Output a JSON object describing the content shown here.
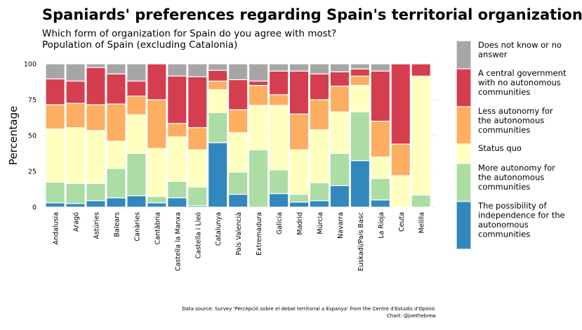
{
  "chart_data": {
    "type": "bar",
    "stacked": true,
    "title": "Spaniards' preferences regarding Spain's territorial organization",
    "subtitle_lines": [
      "Which form of organization for Spain do you agree with most?",
      "Population of Spain (excluding Catalonia)"
    ],
    "xlabel": "",
    "ylabel": "Percentage",
    "ylim": [
      0,
      100
    ],
    "yticks": [
      "0",
      "25",
      "50",
      "75",
      "100"
    ],
    "grid": true,
    "legend_position": "right",
    "categories": [
      "Andalusia",
      "Aragó",
      "Astúries",
      "Balears",
      "Canàries",
      "Cantàbria",
      "Castella la Manxa",
      "Castella i Lleó",
      "Catalunya",
      "País Valencià",
      "Extremadura",
      "Galícia",
      "Madrid",
      "Múrcia",
      "Navarra",
      "Euskadi/País Basc",
      "La Rioja",
      "Ceuta",
      "Melilla"
    ],
    "series": [
      {
        "name": "The possibility of independence for the autonomous communities",
        "color": "#3288bd",
        "values": [
          3,
          2.5,
          4.5,
          6.5,
          8,
          3,
          6.5,
          1,
          45,
          9,
          0,
          9.5,
          3.5,
          4.5,
          15,
          32.5,
          5,
          0,
          0
        ]
      },
      {
        "name": "More autonomy for the autonomous communities",
        "color": "#abdda4",
        "values": [
          14.5,
          14,
          12,
          20.5,
          29.5,
          4.5,
          11.5,
          13,
          21,
          15.5,
          40,
          16.5,
          5.5,
          12.5,
          22.5,
          34,
          15,
          0,
          8.5
        ]
      },
      {
        "name": "Status quo",
        "color": "#ffffbf",
        "values": [
          37,
          39,
          37,
          19,
          27,
          33.5,
          31,
          26,
          16,
          27.5,
          31,
          45,
          31,
          37,
          29,
          18.5,
          15,
          22,
          83
        ]
      },
      {
        "name": "Less autonomy for the autonomous communities",
        "color": "#fdae61",
        "values": [
          17,
          17,
          18,
          26,
          13,
          34,
          9.5,
          15.5,
          6,
          16,
          14,
          7.5,
          25,
          21,
          18,
          6.5,
          25,
          22,
          0
        ]
      },
      {
        "name": "A central government with no autonomous communities",
        "color": "#d53e4f",
        "values": [
          18,
          15.5,
          26,
          21,
          10.5,
          25,
          33,
          35.5,
          7.5,
          21,
          3,
          16.5,
          30,
          18,
          10,
          5,
          35,
          56,
          8.5
        ]
      },
      {
        "name": "Does not know or no answer",
        "color": "#a6a6a6",
        "values": [
          10.5,
          12,
          2.5,
          7,
          12,
          0,
          8.5,
          9,
          4.5,
          11,
          12,
          5,
          5,
          7,
          5.5,
          3.5,
          5,
          0,
          0
        ]
      }
    ],
    "legend_order": [
      {
        "line1": "Does not know or no",
        "line2": "answer",
        "line3": ""
      },
      {
        "line1": "A central government",
        "line2": "with no autonomous",
        "line3": "communities"
      },
      {
        "line1": "Less autonomy for",
        "line2": "the autonomous",
        "line3": "communities"
      },
      {
        "line1": "Status quo",
        "line2": "",
        "line3": ""
      },
      {
        "line1": "More autonomy for",
        "line2": "the autonomous",
        "line3": "communities"
      },
      {
        "line1": "The possibility of",
        "line2": "independence for the",
        "line3": "autonomous",
        "line4": "communities"
      }
    ],
    "caption_lines": [
      "Data source: Survey 'Percepció sobre el debat territorial a Espanya' from the Centre d'Estudis d'Opinió.",
      "Chart: @joethebrew"
    ]
  }
}
